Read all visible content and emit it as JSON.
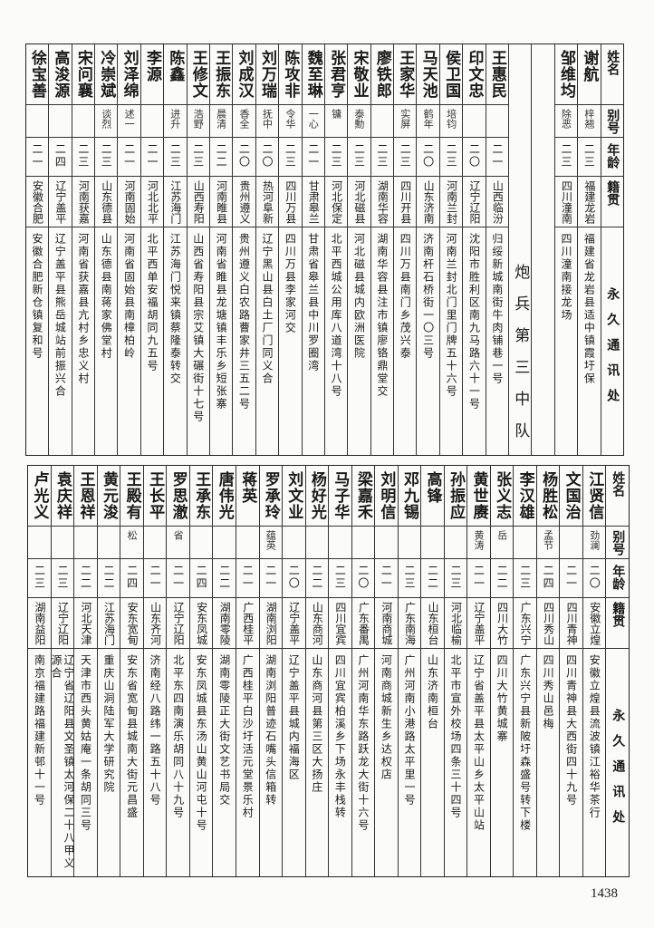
{
  "header": {
    "name": "姓名",
    "alias": "别号",
    "age": "年龄",
    "native": "籍贯",
    "address": "永久通讯处"
  },
  "top": {
    "columns": [
      {
        "name": "谢航",
        "alias": "梓翘",
        "age": "二三",
        "native": "福建龙岩",
        "address": "福建省龙岩县适中镇霞圩保"
      },
      {
        "name": "邹维均",
        "alias": "除恶",
        "age": "二三",
        "native": "四川潼南",
        "address": "四川潼南接龙场"
      },
      {
        "type": "blank"
      },
      {
        "type": "section",
        "label": "炮兵第三中队"
      },
      {
        "name": "王惠民",
        "alias": "",
        "age": "二一",
        "native": "山西临汾",
        "address": "归绥新城南街牛肉铺巷一号"
      },
      {
        "name": "印文忠",
        "alias": "",
        "age": "二〇",
        "native": "辽宁辽阳",
        "address": "沈阳市胜利区南九马路六十一号"
      },
      {
        "name": "侯卫国",
        "alias": "培钧",
        "age": "二三",
        "native": "河南兰封",
        "address": "河南兰封北门里门牌五十六号"
      },
      {
        "name": "马天池",
        "alias": "鹤年",
        "age": "二〇",
        "native": "山东济南",
        "address": "济南杆石桥街一〇三号"
      },
      {
        "name": "王家华",
        "alias": "实屏",
        "age": "二三",
        "native": "四川开县",
        "address": "四川万县南门乡茂兴泰"
      },
      {
        "name": "廖铁郎",
        "alias": "",
        "age": "二三",
        "native": "湖南华容",
        "address": "湖南华容县注市镇廖铬鼎堂交"
      },
      {
        "name": "宋敬业",
        "alias": "泰勳",
        "age": "二三",
        "native": "河北磁县",
        "address": "河北磁县城内欧洲医院"
      },
      {
        "name": "张君亨",
        "alias": "镛",
        "age": "二三",
        "native": "河北保定",
        "address": "北平西城公用库八道湾十八号"
      },
      {
        "name": "魏至琳",
        "alias": "一心",
        "age": "二一",
        "native": "甘肃皋兰",
        "address": "甘肃省皋兰县中川罗圈湾"
      },
      {
        "name": "陈攻非",
        "alias": "令华",
        "age": "二三",
        "native": "四川万县",
        "address": "四川万县李家河交"
      },
      {
        "name": "刘万瑞",
        "alias": "抚中",
        "age": "二〇",
        "native": "热河阜新",
        "address": "辽宁黑山县白土厂门同义合"
      },
      {
        "name": "刘成汉",
        "alias": "香全",
        "age": "二〇",
        "native": "贵州遵义",
        "address": "贵州遵义白农路曹家井三五二号"
      },
      {
        "name": "王振东",
        "alias": "晨清",
        "age": "二二",
        "native": "河南睢县",
        "address": "河南省睢县龙塘镇丰乐乡短张寨"
      },
      {
        "name": "王修文",
        "alias": "浩野",
        "age": "二三",
        "native": "山西寿阳",
        "address": "山西省寿阳县宗艾镇大碾街十七号"
      },
      {
        "name": "陈鑫",
        "alias": "进升",
        "age": "二三",
        "native": "江苏海门",
        "address": "江苏海门悦来镇蔡隆泰转交"
      },
      {
        "name": "李源",
        "alias": "",
        "age": "二一",
        "native": "河北北平",
        "address": "北平西单安福胡同九五号"
      },
      {
        "name": "刘泽绵",
        "alias": "述一",
        "age": "二一",
        "native": "河南固始",
        "address": "河南省固始县南樟柏岭"
      },
      {
        "name": "冷崇斌",
        "alias": "谈烈",
        "age": "二三",
        "native": "山东德县",
        "address": "山东德县南蒋家佛堂村"
      },
      {
        "name": "宋问襄",
        "alias": "",
        "age": "二三",
        "native": "河南获嘉",
        "address": "河南省获嘉县亢村乡忠义村"
      },
      {
        "name": "高浚源",
        "alias": "",
        "age": "二四",
        "native": "辽宁盖平",
        "address": "辽宁盖平县熊岳城站前振兴合"
      },
      {
        "name": "徐宝善",
        "alias": "",
        "age": "二一",
        "native": "安徽合肥",
        "address": "安徽合肥新仓镇复和号"
      }
    ]
  },
  "bottom": {
    "columns": [
      {
        "name": "江贤信",
        "alias": "劲澜",
        "age": "二〇",
        "native": "安徽立煌",
        "address": "安徽立煌县流波镇江裕华茶行"
      },
      {
        "name": "文国治",
        "alias": "",
        "age": "二一",
        "native": "四川青神",
        "address": "四川青神县大西街四十九号"
      },
      {
        "name": "杨胜松",
        "alias": "孟节",
        "age": "二四",
        "native": "四川秀山",
        "address": "四川秀山邑梅"
      },
      {
        "name": "李汉雄",
        "alias": "",
        "age": "二三",
        "native": "广东兴宁",
        "address": "广东兴宁县新陂圩森盛号转下楼"
      },
      {
        "name": "张义志",
        "alias": "岳",
        "age": "二二",
        "native": "四川大竹",
        "address": "四川大竹黄城寨"
      },
      {
        "name": "黄世赓",
        "alias": "黄涛",
        "age": "二一",
        "native": "辽宁盖平",
        "address": "辽宁省盖平县太平山乡太平山站"
      },
      {
        "name": "孙振应",
        "alias": "",
        "age": "二三",
        "native": "河北临榆",
        "address": "北平市宣外校场四条三十四号"
      },
      {
        "name": "高锋",
        "alias": "",
        "age": "二二",
        "native": "山东桓台",
        "address": "山东济南桓台"
      },
      {
        "name": "邓九锡",
        "alias": "",
        "age": "二三",
        "native": "广东南海",
        "address": "广州河南小港路太平里一号"
      },
      {
        "name": "刘明信",
        "alias": "",
        "age": "二一",
        "native": "河南商城",
        "address": "河南商城新生乡达权店"
      },
      {
        "name": "梁嘉禾",
        "alias": "",
        "age": "二〇",
        "native": "广东番禺",
        "address": "广州河南华东路跃龙大街十六号"
      },
      {
        "name": "马子华",
        "alias": "",
        "age": "二三",
        "native": "四川宜宾",
        "address": "四川宜宾柏溪乡下场永丰栈转"
      },
      {
        "name": "杨好光",
        "alias": "",
        "age": "二二",
        "native": "山东商河",
        "address": "山东商河县第三区大扬庄"
      },
      {
        "name": "刘文业",
        "alias": "",
        "age": "二〇",
        "native": "辽宁盖平",
        "address": "辽宁盖平县城内福海区"
      },
      {
        "name": "罗承玲",
        "alias": "蕴英",
        "age": "二一",
        "native": "湖南浏阳",
        "address": "湖南浏阳普迹石嘴头信箱转"
      },
      {
        "name": "蒋英",
        "alias": "",
        "age": "二一",
        "native": "广西桂平",
        "address": "广西桂平白沙圩活元堂景乐村"
      },
      {
        "name": "唐伟光",
        "alias": "",
        "age": "二二",
        "native": "湖南零陵",
        "address": "湖南零陵正大街文艺书局交"
      },
      {
        "name": "王承东",
        "alias": "",
        "age": "二四",
        "native": "安东凤城",
        "address": "安东凤城县东汤山黄山河屯十号"
      },
      {
        "name": "罗思澈",
        "alias": "省",
        "age": "二一",
        "native": "辽宁辽阳",
        "address": "北平东四南演乐胡同八十九号"
      },
      {
        "name": "王长平",
        "alias": "",
        "age": "二一",
        "native": "山东齐河",
        "address": "济南经八路纬一路五十八号"
      },
      {
        "name": "王殿有",
        "alias": "松",
        "age": "二四",
        "native": "安东宽甸",
        "address": "安东省宽甸县城南大街元昌盛"
      },
      {
        "name": "黄元浚",
        "alias": "",
        "age": "二二",
        "native": "江苏海门",
        "address": "重庆山洞陆军大学研究院"
      },
      {
        "name": "王恩祥",
        "alias": "",
        "age": "二二",
        "native": "河北天津",
        "address": "天津市西头黄姑庵一条胡同三号"
      },
      {
        "name": "袁庆祥",
        "alias": "",
        "age": "二三",
        "native": "辽宁辽阳",
        "address": "辽宁省辽阳县文圣镇太河保二十八甲义源合"
      },
      {
        "name": "卢光义",
        "alias": "",
        "age": "二三",
        "native": "湖南益阳",
        "address": "南京福建路福建新邨十一号"
      }
    ]
  },
  "page_number": "1438"
}
